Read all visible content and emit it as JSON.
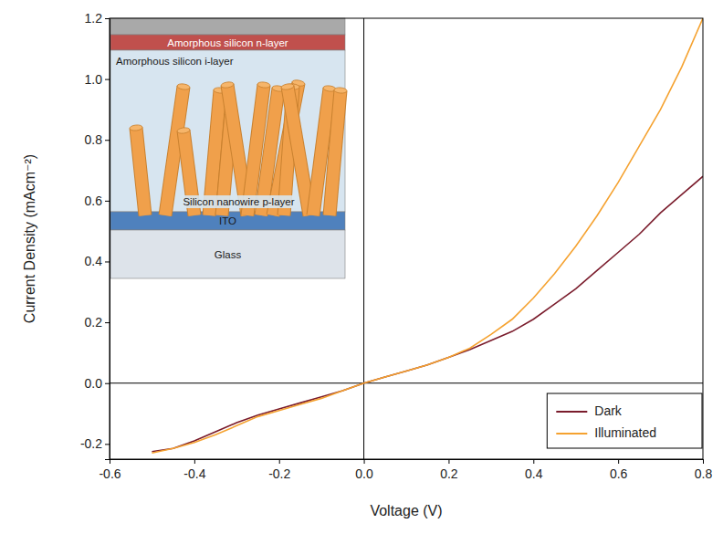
{
  "chart_data": {
    "type": "line",
    "x_label": "Voltage (V)",
    "y_label": "Current Density (mAcm⁻²)",
    "x": [
      -0.5,
      -0.45,
      -0.4,
      -0.35,
      -0.3,
      -0.25,
      -0.2,
      -0.15,
      -0.1,
      -0.05,
      0,
      0.05,
      0.1,
      0.15,
      0.2,
      0.25,
      0.3,
      0.35,
      0.4,
      0.45,
      0.5,
      0.55,
      0.6,
      0.65,
      0.7,
      0.75,
      0.8
    ],
    "series": [
      {
        "name": "Dark",
        "color": "#7a1c2c",
        "values": [
          -0.225,
          -0.215,
          -0.19,
          -0.16,
          -0.13,
          -0.105,
          -0.085,
          -0.065,
          -0.045,
          -0.025,
          0.0,
          0.02,
          0.04,
          0.06,
          0.085,
          0.11,
          0.14,
          0.17,
          0.21,
          0.26,
          0.31,
          0.37,
          0.43,
          0.49,
          0.56,
          0.62,
          0.68
        ]
      },
      {
        "name": "Illuminated",
        "color": "#f5a230",
        "values": [
          -0.23,
          -0.215,
          -0.195,
          -0.17,
          -0.14,
          -0.11,
          -0.09,
          -0.07,
          -0.05,
          -0.025,
          0.0,
          0.02,
          0.04,
          0.06,
          0.085,
          0.115,
          0.16,
          0.21,
          0.28,
          0.36,
          0.45,
          0.55,
          0.66,
          0.78,
          0.9,
          1.04,
          1.2
        ]
      }
    ],
    "xlim": [
      -0.6,
      0.8
    ],
    "xticks": [
      -0.6,
      -0.4,
      -0.2,
      {
        "value": 0,
        "label": "0.0"
      },
      0.2,
      0.4,
      0.6,
      0.8
    ],
    "ylim": [
      -0.25,
      1.2
    ],
    "yticks": [
      -0.2,
      {
        "value": 0,
        "label": "0.0"
      },
      0.2,
      0.4,
      0.6,
      0.8,
      {
        "value": 1,
        "label": "1.0"
      },
      1.2
    ],
    "grid": false,
    "legend": "lower right",
    "annotations": [
      "Amorphous silicon n-layer",
      "Amorphous silicon i-layer",
      "Silicon nanowire p-layer",
      "ITO",
      "Glass"
    ]
  }
}
